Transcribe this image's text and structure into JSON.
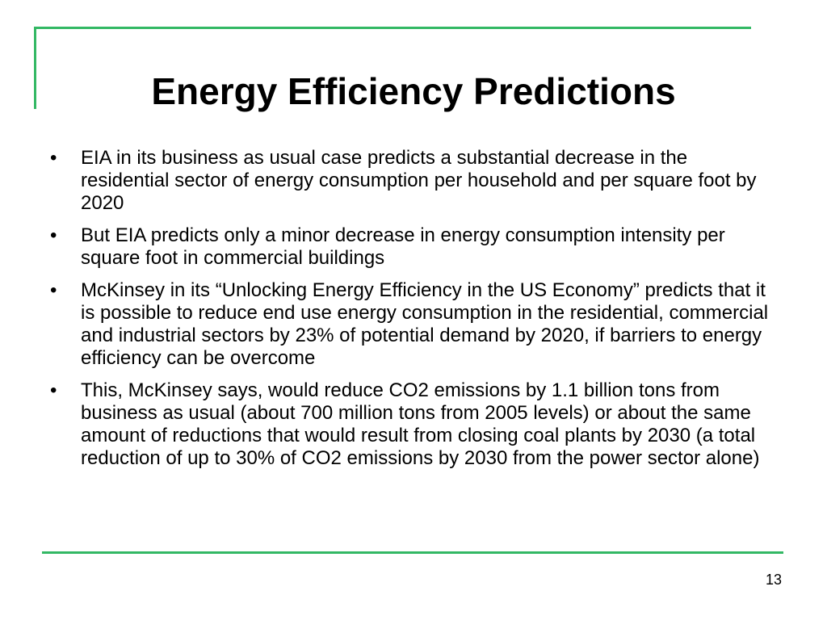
{
  "slide": {
    "title": "Energy Efficiency Predictions",
    "bullet_symbol": "•",
    "bullets": [
      "EIA in its business as usual case predicts a substantial decrease in the residential sector of energy consumption per household and per square foot by 2020",
      "But EIA predicts only a minor decrease in energy consumption intensity per square foot in commercial buildings",
      "McKinsey in its “Unlocking Energy Efficiency in the US Economy” predicts that it is possible to reduce end use energy consumption in the residential, commercial and industrial sectors by 23% of potential demand by 2020, if barriers to energy efficiency can be overcome",
      "This, McKinsey says, would reduce CO2 emissions by 1.1 billion tons from business as usual (about 700 million tons from 2005 levels) or about the same amount of reductions that would result from closing coal plants by 2030 (a total reduction of up to 30% of CO2 emissions by 2030 from the power sector alone)"
    ],
    "page_number": "13"
  },
  "colors": {
    "accent_line": "#33b864",
    "text": "#000000",
    "background": "#ffffff"
  }
}
